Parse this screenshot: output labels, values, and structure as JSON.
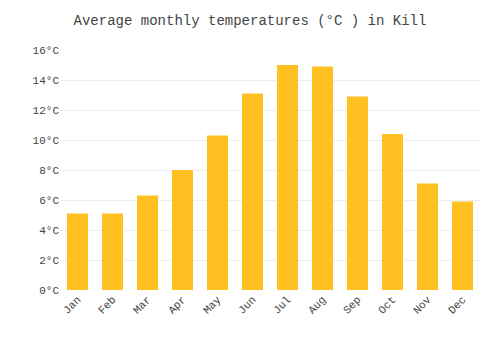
{
  "chart_data": {
    "type": "bar",
    "title": "Average monthly temperatures (°C ) in Kill",
    "categories": [
      "Jan",
      "Feb",
      "Mar",
      "Apr",
      "May",
      "Jun",
      "Jul",
      "Aug",
      "Sep",
      "Oct",
      "Nov",
      "Dec"
    ],
    "values": [
      5.1,
      5.1,
      6.3,
      8.0,
      10.3,
      13.1,
      15.0,
      14.9,
      12.9,
      10.4,
      7.1,
      5.9
    ],
    "color": "#FFC022",
    "ylim": [
      0,
      16
    ],
    "yticks": [
      {
        "value": 0,
        "label": "0°C"
      },
      {
        "value": 2,
        "label": "2°C"
      },
      {
        "value": 4,
        "label": "4°C"
      },
      {
        "value": 6,
        "label": "6°C"
      },
      {
        "value": 8,
        "label": "8°C"
      },
      {
        "value": 10,
        "label": "10°C"
      },
      {
        "value": 12,
        "label": "12°C"
      },
      {
        "value": 14,
        "label": "14°C"
      },
      {
        "value": 16,
        "label": "16°C"
      }
    ],
    "grid": true
  }
}
